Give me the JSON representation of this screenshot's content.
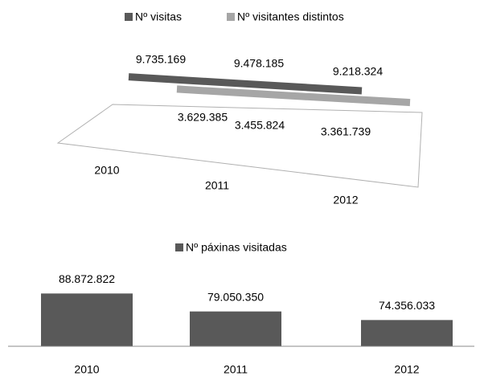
{
  "chart_data": [
    {
      "type": "line3d",
      "categories": [
        "2010",
        "2011",
        "2012"
      ],
      "series": [
        {
          "name": "Nº visitas",
          "color": "#595959",
          "values": [
            9735169,
            9478185,
            9218324
          ],
          "value_labels": [
            "9.735.169",
            "9.478.185",
            "9.218.324"
          ]
        },
        {
          "name": "Nº visitantes distintos",
          "color": "#a6a6a6",
          "values": [
            3629385,
            3455824,
            3361739
          ],
          "value_labels": [
            "3.629.385",
            "3.455.824",
            "3.361.739"
          ]
        }
      ],
      "ylim": [
        0,
        10000000
      ]
    },
    {
      "type": "bar",
      "categories": [
        "2010",
        "2011",
        "2012"
      ],
      "series": [
        {
          "name": "Nº páxinas visitadas",
          "color": "#595959",
          "values": [
            88872822,
            79050350,
            74356033
          ],
          "value_labels": [
            "88.872.822",
            "79.050.350",
            "74.356.033"
          ]
        }
      ],
      "ylim": [
        60000000,
        100000000
      ]
    }
  ]
}
